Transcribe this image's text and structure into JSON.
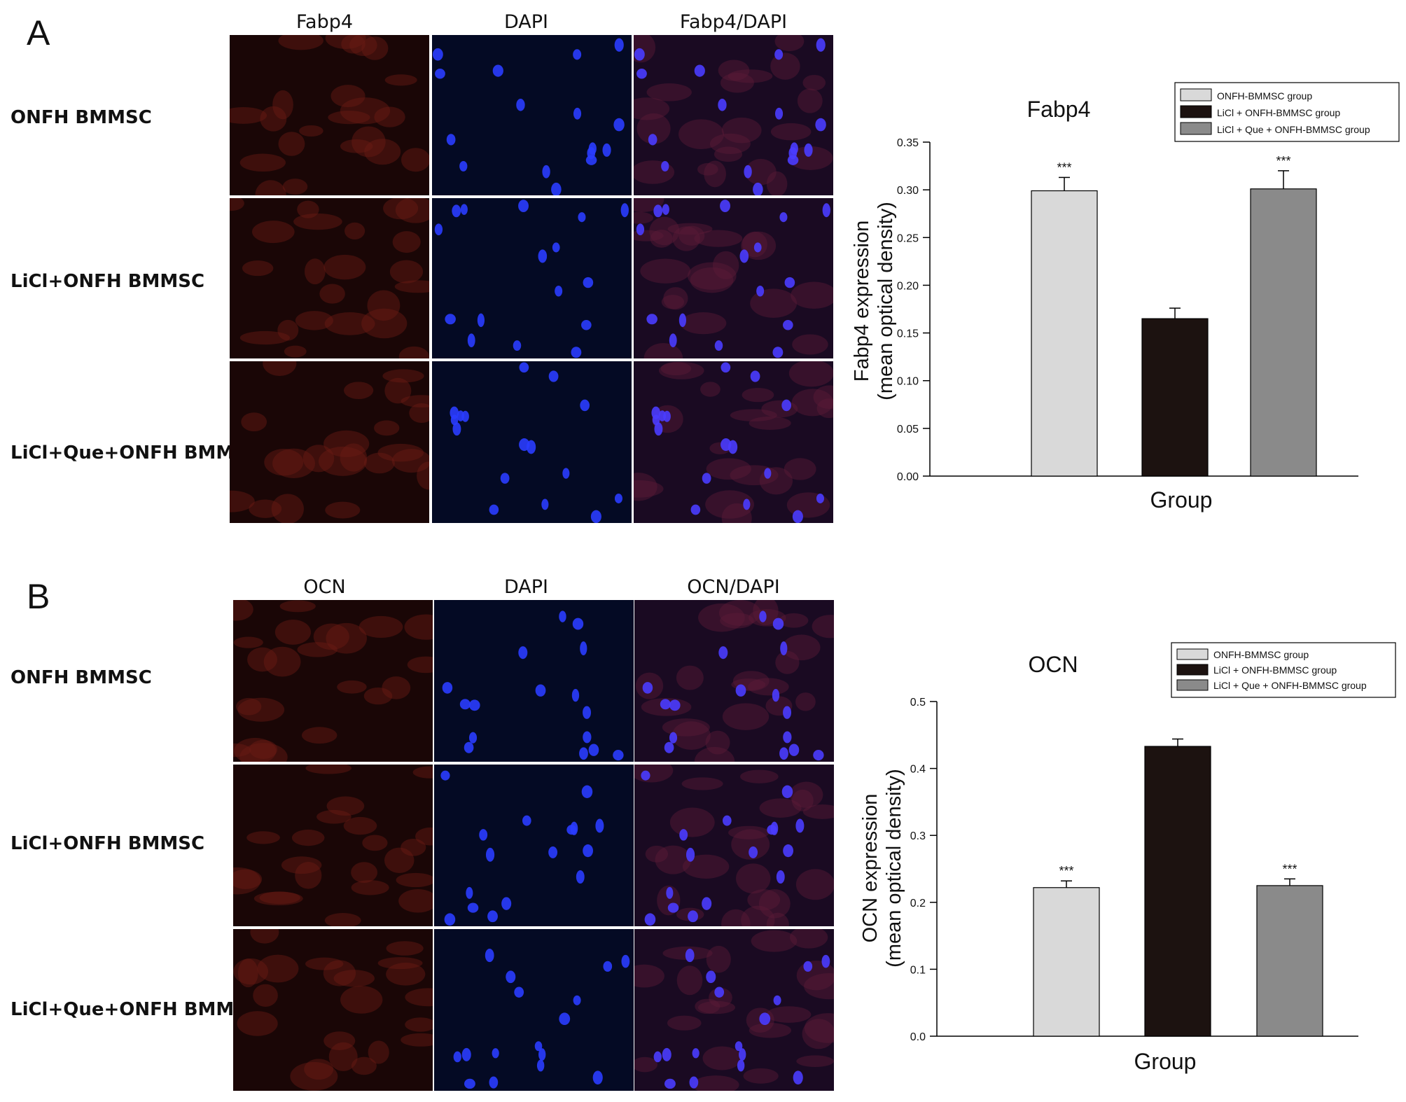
{
  "panels": [
    {
      "letter": "A",
      "columns": [
        "Fabp4",
        "DAPI",
        "Fabp4/DAPI"
      ],
      "rows": [
        "ONFH BMMSC",
        "LiCl+ONFH BMMSC",
        "LiCl+Que+ONFH BMMSC"
      ]
    },
    {
      "letter": "B",
      "columns": [
        "OCN",
        "DAPI",
        "OCN/DAPI"
      ],
      "rows": [
        "ONFH BMMSC",
        "LiCl+ONFH BMMSC",
        "LiCl+Que+ONFH BMMSC"
      ]
    }
  ],
  "colors": {
    "marker_red": "#c8281e",
    "dapi_blue": "#2a3cff",
    "bar_group1": "#d9d9d9",
    "bar_group2": "#1c1210",
    "bar_group3": "#8a8a8a"
  },
  "chart_data": [
    {
      "type": "bar",
      "title": "Fabp4",
      "xlabel": "Group",
      "ylabel_line1": "Fabp4 expression",
      "ylabel_line2": "(mean optical density)",
      "ylim": [
        0,
        0.35
      ],
      "yticks": [
        "0.00",
        "0.05",
        "0.10",
        "0.15",
        "0.20",
        "0.25",
        "0.30",
        "0.35"
      ],
      "categories": [
        "ONFH-BMMSC group",
        "LiCl + ONFH-BMMSC group",
        "LiCl + Que + ONFH-BMMSC group"
      ],
      "values": [
        0.299,
        0.165,
        0.301
      ],
      "errors": [
        0.014,
        0.011,
        0.019
      ],
      "significance": [
        "***",
        "",
        "***"
      ],
      "legend": [
        "ONFH-BMMSC group",
        "LiCl + ONFH-BMMSC group",
        "LiCl + Que + ONFH-BMMSC group"
      ],
      "legend_position": "top-right",
      "grid": false
    },
    {
      "type": "bar",
      "title": "OCN",
      "xlabel": "Group",
      "ylabel_line1": "OCN expression",
      "ylabel_line2": "(mean optical density)",
      "ylim": [
        0,
        0.5
      ],
      "yticks": [
        "0.0",
        "0.1",
        "0.2",
        "0.3",
        "0.4",
        "0.5"
      ],
      "categories": [
        "ONFH-BMMSC group",
        "LiCl + ONFH-BMMSC group",
        "LiCl + Que + ONFH-BMMSC group"
      ],
      "values": [
        0.222,
        0.433,
        0.225
      ],
      "errors": [
        0.01,
        0.011,
        0.01
      ],
      "significance": [
        "***",
        "",
        "***"
      ],
      "legend": [
        "ONFH-BMMSC group",
        "LiCl + ONFH-BMMSC group",
        "LiCl + Que + ONFH-BMMSC group"
      ],
      "legend_position": "top-right",
      "grid": false
    }
  ]
}
